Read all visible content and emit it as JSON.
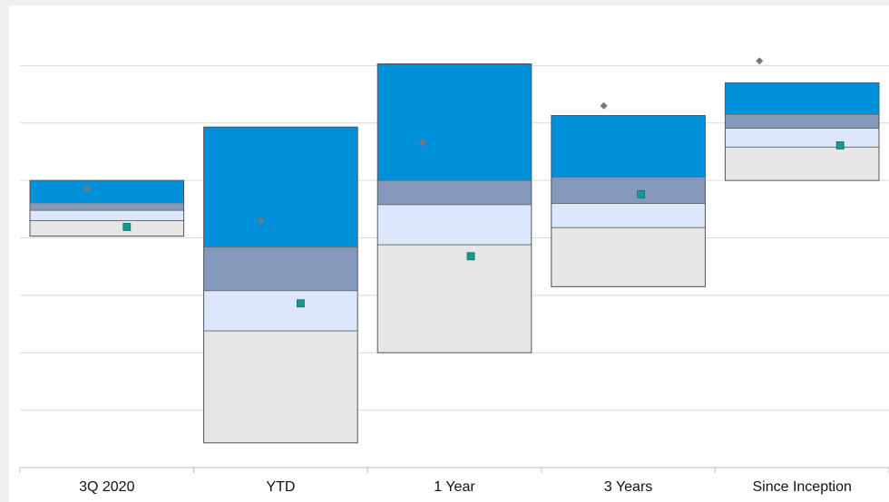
{
  "chart_data": {
    "type": "floating-bar",
    "categories": [
      "3Q 2020",
      "YTD",
      "1 Year",
      "3 Years",
      "Since Inception"
    ],
    "ylim": [
      0,
      8
    ],
    "gridlines": [
      1,
      2,
      3,
      4,
      5,
      6,
      7
    ],
    "grid": true,
    "bands": [
      {
        "low": 4.03,
        "b1": 4.3,
        "b2": 4.48,
        "b3": 4.61,
        "high": 5.0
      },
      {
        "low": 0.43,
        "b1": 2.38,
        "b2": 3.08,
        "b3": 3.84,
        "high": 5.93
      },
      {
        "low": 2.0,
        "b1": 3.88,
        "b2": 4.58,
        "b3": 5.0,
        "high": 7.03
      },
      {
        "low": 3.15,
        "b1": 4.18,
        "b2": 4.6,
        "b3": 5.06,
        "high": 6.13
      },
      {
        "low": 5.0,
        "b1": 5.58,
        "b2": 5.91,
        "b3": 6.15,
        "high": 6.7
      }
    ],
    "band_colors": [
      "#e6e6e6",
      "#dde7fb",
      "#8499bc",
      "#0090da"
    ],
    "series": [
      {
        "values": [
          4.86,
          4.3,
          5.66,
          6.3,
          7.08
        ],
        "marker": "diamond",
        "color": "#777777"
      },
      {
        "values": [
          4.19,
          2.86,
          3.68,
          4.76,
          5.61
        ],
        "marker": "square",
        "color": "#129b8e"
      }
    ]
  }
}
